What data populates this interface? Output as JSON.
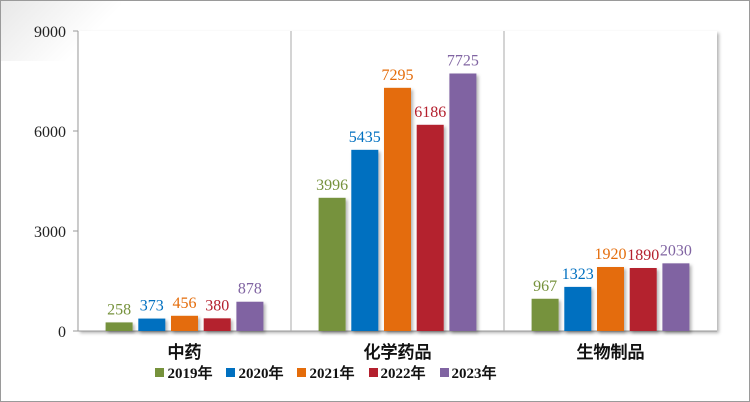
{
  "chart_data": {
    "type": "bar",
    "categories": [
      "中药",
      "化学药品",
      "生物制品"
    ],
    "series": [
      {
        "name": "2019年",
        "color": "#76923c",
        "values": [
          258,
          3996,
          967
        ]
      },
      {
        "name": "2020年",
        "color": "#0070c0",
        "values": [
          373,
          5435,
          1323
        ]
      },
      {
        "name": "2021年",
        "color": "#e46c0a",
        "values": [
          456,
          7295,
          1920
        ]
      },
      {
        "name": "2022年",
        "color": "#b4202e",
        "values": [
          380,
          6186,
          1890
        ]
      },
      {
        "name": "2023年",
        "color": "#8064a2",
        "values": [
          878,
          7725,
          2030
        ]
      }
    ],
    "ylim": [
      0,
      9000
    ],
    "yticks": [
      "0",
      "3000",
      "6000",
      "9000"
    ],
    "legend": "bottom",
    "grid": false
  }
}
